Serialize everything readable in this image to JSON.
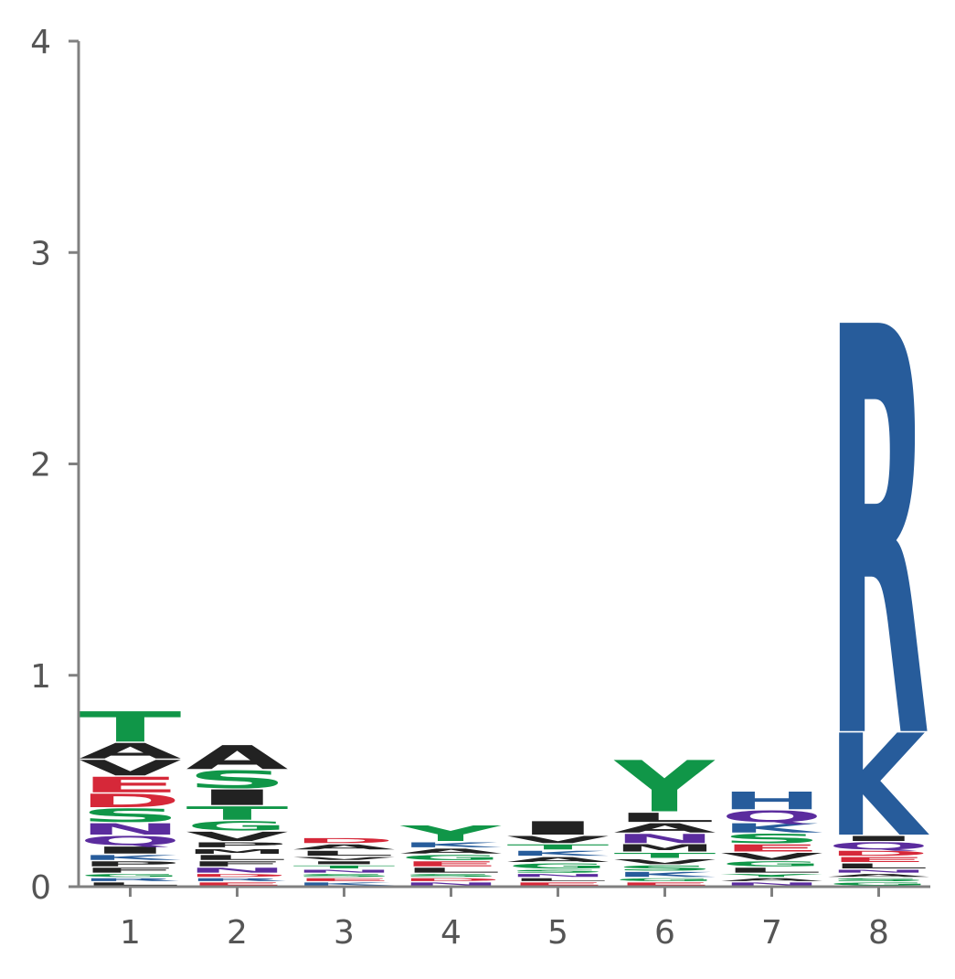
{
  "chart_data": {
    "type": "sequence-logo",
    "title": "",
    "xlabel": "",
    "ylabel": "",
    "ylim": [
      0,
      4
    ],
    "yticks": [
      "0",
      "1",
      "2",
      "3",
      "4"
    ],
    "categories": [
      "1",
      "2",
      "3",
      "4",
      "5",
      "6",
      "7",
      "8"
    ],
    "grid": false,
    "colors": {
      "R": "#275C9B",
      "K": "#275C9B",
      "H": "#275C9B",
      "D": "#D62839",
      "E": "#D62839",
      "S": "#109648",
      "T": "#109648",
      "G": "#109648",
      "Y": "#109648",
      "C": "#109648",
      "N": "#5B2C9E",
      "Q": "#5B2C9E",
      "A": "#222222",
      "V": "#222222",
      "L": "#222222",
      "I": "#222222",
      "P": "#222222",
      "F": "#222222",
      "M": "#222222",
      "W": "#222222",
      "axis": "#808080",
      "tick_text": "#555555"
    },
    "positions": [
      {
        "position": "1",
        "letters": [
          {
            "letter": "L",
            "height": 0.02
          },
          {
            "letter": "R",
            "height": 0.02
          },
          {
            "letter": "G",
            "height": 0.02
          },
          {
            "letter": "F",
            "height": 0.03
          },
          {
            "letter": "P",
            "height": 0.03
          },
          {
            "letter": "K",
            "height": 0.03
          },
          {
            "letter": "I",
            "height": 0.04
          },
          {
            "letter": "Q",
            "height": 0.05
          },
          {
            "letter": "N",
            "height": 0.06
          },
          {
            "letter": "S",
            "height": 0.07
          },
          {
            "letter": "D",
            "height": 0.07
          },
          {
            "letter": "E",
            "height": 0.08
          },
          {
            "letter": "V",
            "height": 0.08
          },
          {
            "letter": "A",
            "height": 0.08
          },
          {
            "letter": "T",
            "height": 0.15
          }
        ]
      },
      {
        "position": "2",
        "letters": [
          {
            "letter": "E",
            "height": 0.02
          },
          {
            "letter": "R",
            "height": 0.02
          },
          {
            "letter": "D",
            "height": 0.02
          },
          {
            "letter": "N",
            "height": 0.03
          },
          {
            "letter": "F",
            "height": 0.03
          },
          {
            "letter": "L",
            "height": 0.03
          },
          {
            "letter": "M",
            "height": 0.03
          },
          {
            "letter": "P",
            "height": 0.03
          },
          {
            "letter": "V",
            "height": 0.05
          },
          {
            "letter": "G",
            "height": 0.05
          },
          {
            "letter": "T",
            "height": 0.07
          },
          {
            "letter": "I",
            "height": 0.08
          },
          {
            "letter": "S",
            "height": 0.09
          },
          {
            "letter": "A",
            "height": 0.12
          }
        ]
      },
      {
        "position": "3",
        "letters": [
          {
            "letter": "K",
            "height": 0.02
          },
          {
            "letter": "E",
            "height": 0.02
          },
          {
            "letter": "S",
            "height": 0.02
          },
          {
            "letter": "N",
            "height": 0.02
          },
          {
            "letter": "T",
            "height": 0.02
          },
          {
            "letter": "I",
            "height": 0.02
          },
          {
            "letter": "V",
            "height": 0.02
          },
          {
            "letter": "L",
            "height": 0.03
          },
          {
            "letter": "A",
            "height": 0.03
          },
          {
            "letter": "D",
            "height": 0.03
          }
        ]
      },
      {
        "position": "4",
        "letters": [
          {
            "letter": "N",
            "height": 0.02
          },
          {
            "letter": "D",
            "height": 0.02
          },
          {
            "letter": "S",
            "height": 0.02
          },
          {
            "letter": "L",
            "height": 0.03
          },
          {
            "letter": "E",
            "height": 0.03
          },
          {
            "letter": "G",
            "height": 0.03
          },
          {
            "letter": "A",
            "height": 0.03
          },
          {
            "letter": "K",
            "height": 0.03
          },
          {
            "letter": "Y",
            "height": 0.08
          }
        ]
      },
      {
        "position": "5",
        "letters": [
          {
            "letter": "E",
            "height": 0.02
          },
          {
            "letter": "L",
            "height": 0.02
          },
          {
            "letter": "N",
            "height": 0.02
          },
          {
            "letter": "S",
            "height": 0.02
          },
          {
            "letter": "G",
            "height": 0.03
          },
          {
            "letter": "A",
            "height": 0.03
          },
          {
            "letter": "K",
            "height": 0.03
          },
          {
            "letter": "T",
            "height": 0.03
          },
          {
            "letter": "V",
            "height": 0.04
          },
          {
            "letter": "I",
            "height": 0.07
          }
        ]
      },
      {
        "position": "6",
        "letters": [
          {
            "letter": "E",
            "height": 0.02
          },
          {
            "letter": "G",
            "height": 0.02
          },
          {
            "letter": "K",
            "height": 0.03
          },
          {
            "letter": "S",
            "height": 0.03
          },
          {
            "letter": "V",
            "height": 0.03
          },
          {
            "letter": "T",
            "height": 0.03
          },
          {
            "letter": "M",
            "height": 0.04
          },
          {
            "letter": "N",
            "height": 0.05
          },
          {
            "letter": "A",
            "height": 0.05
          },
          {
            "letter": "L",
            "height": 0.05
          },
          {
            "letter": "Y",
            "height": 0.25
          }
        ]
      },
      {
        "position": "7",
        "letters": [
          {
            "letter": "N",
            "height": 0.02
          },
          {
            "letter": "A",
            "height": 0.02
          },
          {
            "letter": "Y",
            "height": 0.02
          },
          {
            "letter": "L",
            "height": 0.03
          },
          {
            "letter": "G",
            "height": 0.03
          },
          {
            "letter": "V",
            "height": 0.04
          },
          {
            "letter": "E",
            "height": 0.04
          },
          {
            "letter": "S",
            "height": 0.05
          },
          {
            "letter": "K",
            "height": 0.05
          },
          {
            "letter": "Q",
            "height": 0.06
          },
          {
            "letter": "H",
            "height": 0.09
          }
        ]
      },
      {
        "position": "8",
        "letters": [
          {
            "letter": "G",
            "height": 0.02
          },
          {
            "letter": "S",
            "height": 0.02
          },
          {
            "letter": "A",
            "height": 0.02
          },
          {
            "letter": "N",
            "height": 0.02
          },
          {
            "letter": "L",
            "height": 0.03
          },
          {
            "letter": "E",
            "height": 0.03
          },
          {
            "letter": "D",
            "height": 0.03
          },
          {
            "letter": "Q",
            "height": 0.04
          },
          {
            "letter": "I",
            "height": 0.03
          },
          {
            "letter": "K",
            "height": 0.49
          },
          {
            "letter": "R",
            "height": 1.94
          }
        ]
      }
    ]
  }
}
